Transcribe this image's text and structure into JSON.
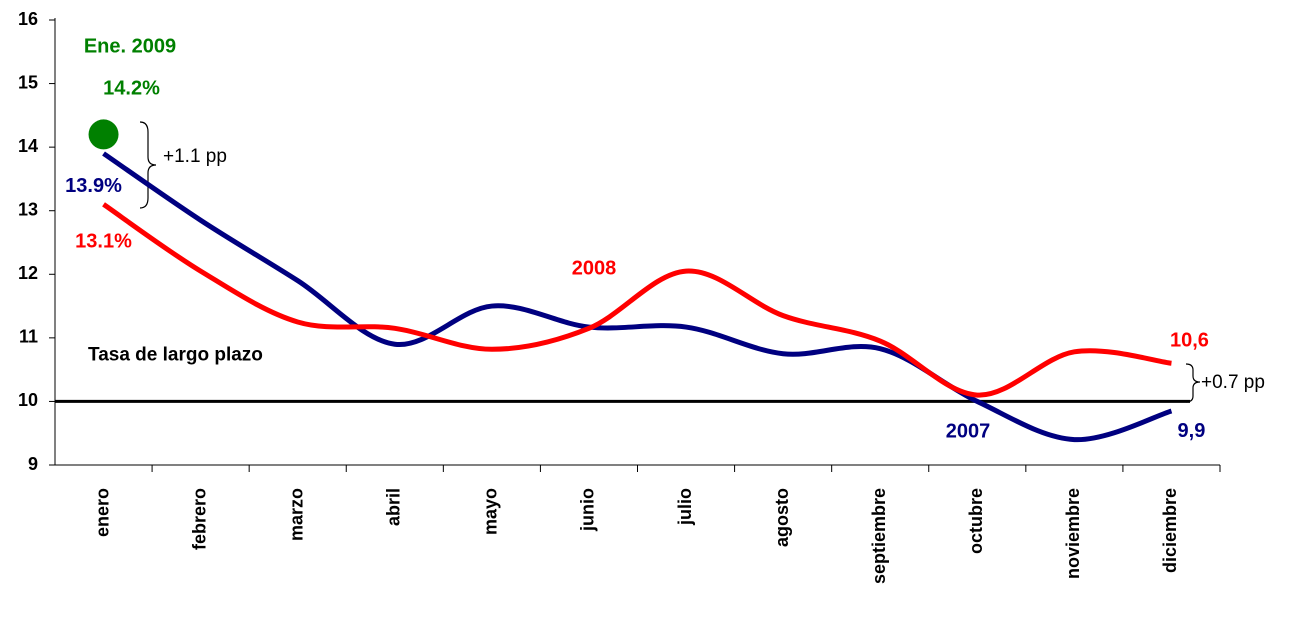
{
  "chart_data": {
    "type": "line",
    "categories": [
      "enero",
      "febrero",
      "marzo",
      "abril",
      "mayo",
      "junio",
      "julio",
      "agosto",
      "septiembre",
      "octubre",
      "noviembre",
      "diciembre"
    ],
    "series": [
      {
        "name": "2007",
        "color": "#000080",
        "values": [
          13.9,
          12.85,
          11.9,
          10.9,
          11.5,
          11.17,
          11.17,
          10.75,
          10.83,
          10.0,
          9.4,
          9.85
        ],
        "value_labels": [
          "13.9%",
          null,
          null,
          null,
          null,
          null,
          null,
          null,
          null,
          null,
          null,
          "9,9"
        ]
      },
      {
        "name": "2008",
        "color": "#ff0000",
        "values": [
          13.1,
          12.05,
          11.25,
          11.15,
          10.82,
          11.15,
          12.05,
          11.35,
          10.95,
          10.1,
          10.78,
          10.6
        ],
        "value_labels": [
          "13.1%",
          null,
          null,
          null,
          null,
          null,
          null,
          null,
          null,
          null,
          null,
          "10,6"
        ]
      },
      {
        "name": "Ene. 2009",
        "color": "#008000",
        "marker": true,
        "values": [
          14.2,
          null,
          null,
          null,
          null,
          null,
          null,
          null,
          null,
          null,
          null,
          null
        ],
        "value_labels": [
          "14.2%",
          null,
          null,
          null,
          null,
          null,
          null,
          null,
          null,
          null,
          null,
          null
        ]
      }
    ],
    "reference_line": {
      "value": 10,
      "label": "Tasa de largo plazo",
      "color": "#000000"
    },
    "annotations": [
      "+1.1 pp",
      "+0.7 pp"
    ],
    "ylim": [
      9,
      16
    ],
    "yticks": [
      9,
      10,
      11,
      12,
      13,
      14,
      15,
      16
    ],
    "grid": false
  }
}
